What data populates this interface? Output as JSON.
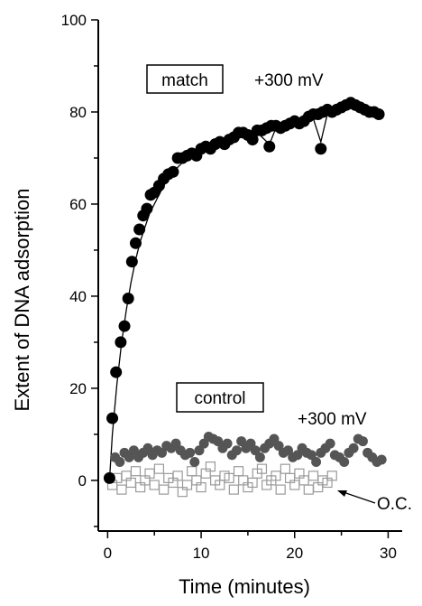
{
  "chart_data": {
    "type": "scatter",
    "xlabel": "Time (minutes)",
    "ylabel": "Extent of DNA adsorption",
    "xlim": [
      -1,
      31.5
    ],
    "ylim": [
      -11,
      100
    ],
    "xticks": [
      "0",
      "10",
      "20",
      "30"
    ],
    "yticks": [
      "0",
      "20",
      "40",
      "60",
      "80",
      "100"
    ],
    "colors": {
      "match": "#000000",
      "control": "#555555",
      "oc": "#9a9a9a",
      "fit": "#000000"
    },
    "annotations": {
      "match_box": "match",
      "match_potential": "+300 mV",
      "control_box": "control",
      "control_potential": "+300 mV",
      "oc_label": "O.C."
    },
    "series": [
      {
        "key": "match",
        "marker": "filled-circle",
        "x": [
          0.2,
          0.5,
          0.9,
          1.4,
          1.8,
          2.2,
          2.6,
          3.0,
          3.4,
          3.8,
          4.2,
          4.6,
          5.0,
          5.5,
          6.0,
          6.5,
          7.0,
          7.5,
          8.0,
          8.5,
          9.0,
          9.5,
          10.0,
          10.5,
          11.0,
          11.5,
          12.0,
          12.5,
          13.0,
          13.5,
          14.0,
          14.5,
          15.0,
          15.5,
          16.0,
          16.5,
          17.0,
          17.3,
          17.5,
          18.0,
          18.5,
          19.0,
          19.5,
          20.0,
          20.5,
          21.0,
          21.5,
          22.0,
          22.5,
          22.8,
          23.0,
          23.5,
          24.0,
          24.5,
          25.0,
          25.5,
          26.0,
          26.5,
          27.0,
          27.5,
          28.0,
          28.5,
          29.0
        ],
        "y": [
          0.5,
          13.5,
          23.5,
          30,
          33.5,
          39.5,
          47.5,
          51.5,
          54.5,
          57.5,
          59,
          62,
          62.5,
          64,
          65.5,
          66.5,
          67,
          70,
          70,
          70.5,
          71,
          70.5,
          72,
          72.5,
          72,
          73,
          73.5,
          73,
          74,
          74.5,
          75.5,
          75.5,
          75,
          74,
          76,
          76,
          76.5,
          72.5,
          77,
          77,
          76.5,
          77,
          77.5,
          78,
          77.5,
          78,
          79,
          79.5,
          79.5,
          72,
          80,
          80.5,
          80,
          80.5,
          81,
          81.5,
          82,
          81.5,
          81,
          80.5,
          80,
          80,
          79.5
        ]
      },
      {
        "key": "control",
        "marker": "gray-circle",
        "x": [
          0.8,
          1.3,
          1.8,
          2.3,
          2.8,
          3.3,
          3.8,
          4.3,
          4.8,
          5.3,
          5.8,
          6.3,
          6.8,
          7.3,
          7.8,
          8.3,
          8.8,
          9.3,
          9.8,
          10.3,
          10.8,
          11.3,
          11.8,
          12.3,
          12.8,
          13.3,
          13.8,
          14.3,
          14.8,
          15.3,
          15.8,
          16.3,
          16.8,
          17.3,
          17.8,
          18.3,
          18.8,
          19.3,
          19.8,
          20.3,
          20.8,
          21.3,
          21.8,
          22.3,
          22.8,
          23.3,
          23.8,
          24.3,
          24.8,
          25.3,
          25.8,
          26.3,
          26.8,
          27.3,
          27.8,
          28.3,
          28.8,
          29.3
        ],
        "y": [
          5,
          4,
          6,
          5,
          6.5,
          5,
          6,
          7,
          5.5,
          6.5,
          6,
          7.5,
          7,
          8,
          6.5,
          5.5,
          6,
          4,
          6.5,
          8,
          9.5,
          9,
          8.5,
          7,
          8,
          5.5,
          6.5,
          8.5,
          7,
          8,
          6.5,
          5,
          7,
          8,
          9,
          7.5,
          6,
          6.5,
          5,
          5.5,
          7,
          6,
          5.5,
          4,
          6,
          7,
          8,
          5.5,
          5,
          4,
          6,
          7,
          9,
          8.5,
          6,
          5,
          4,
          4.5
        ]
      },
      {
        "key": "oc",
        "marker": "open-square",
        "x": [
          0.5,
          1.0,
          1.5,
          2.0,
          2.5,
          3.0,
          3.5,
          4.0,
          4.5,
          5.0,
          5.5,
          6.0,
          6.5,
          7.0,
          7.5,
          8.0,
          8.5,
          9.0,
          9.5,
          10.0,
          10.5,
          11.0,
          11.5,
          12.0,
          12.5,
          13.0,
          13.5,
          14.0,
          14.5,
          15.0,
          15.5,
          16.0,
          16.5,
          17.0,
          17.5,
          18.0,
          18.5,
          19.0,
          19.5,
          20.0,
          20.5,
          21.0,
          21.5,
          22.0,
          22.5,
          23.0,
          23.5,
          24.0
        ],
        "y": [
          -1,
          0.5,
          -2,
          1,
          -0.5,
          2,
          -1.5,
          0,
          1.5,
          -1,
          2.5,
          -2,
          0.5,
          -0.5,
          1,
          -2.5,
          -1,
          2,
          0,
          -1.5,
          1.5,
          3,
          0,
          -1,
          1,
          0.5,
          -2,
          2,
          0,
          -1.5,
          -0.5,
          1.5,
          2.5,
          -1,
          0,
          1,
          -2,
          2.5,
          0.5,
          -1,
          1.5,
          0,
          -2,
          1,
          -1.5,
          0,
          -0.5,
          1
        ]
      }
    ],
    "fit": {
      "key": "match-fit",
      "x": [
        0.2,
        0.5,
        1.0,
        1.5,
        2.0,
        2.5,
        3.0,
        3.5,
        4.0,
        4.5,
        5.0,
        6.0,
        7.0,
        8.0,
        9.0,
        10.0,
        12.0,
        14.0,
        16.0,
        17.3,
        18.0,
        20.0,
        22.0,
        22.8,
        23.5,
        25.0,
        27.0,
        29.0
      ],
      "y": [
        0,
        10,
        21,
        30,
        37,
        43,
        48,
        52,
        55,
        58,
        60,
        64,
        67,
        69,
        70.5,
        71.5,
        73,
        74.5,
        75.5,
        73,
        76.5,
        77,
        78.5,
        73.5,
        79.5,
        80.5,
        81,
        80
      ]
    }
  }
}
